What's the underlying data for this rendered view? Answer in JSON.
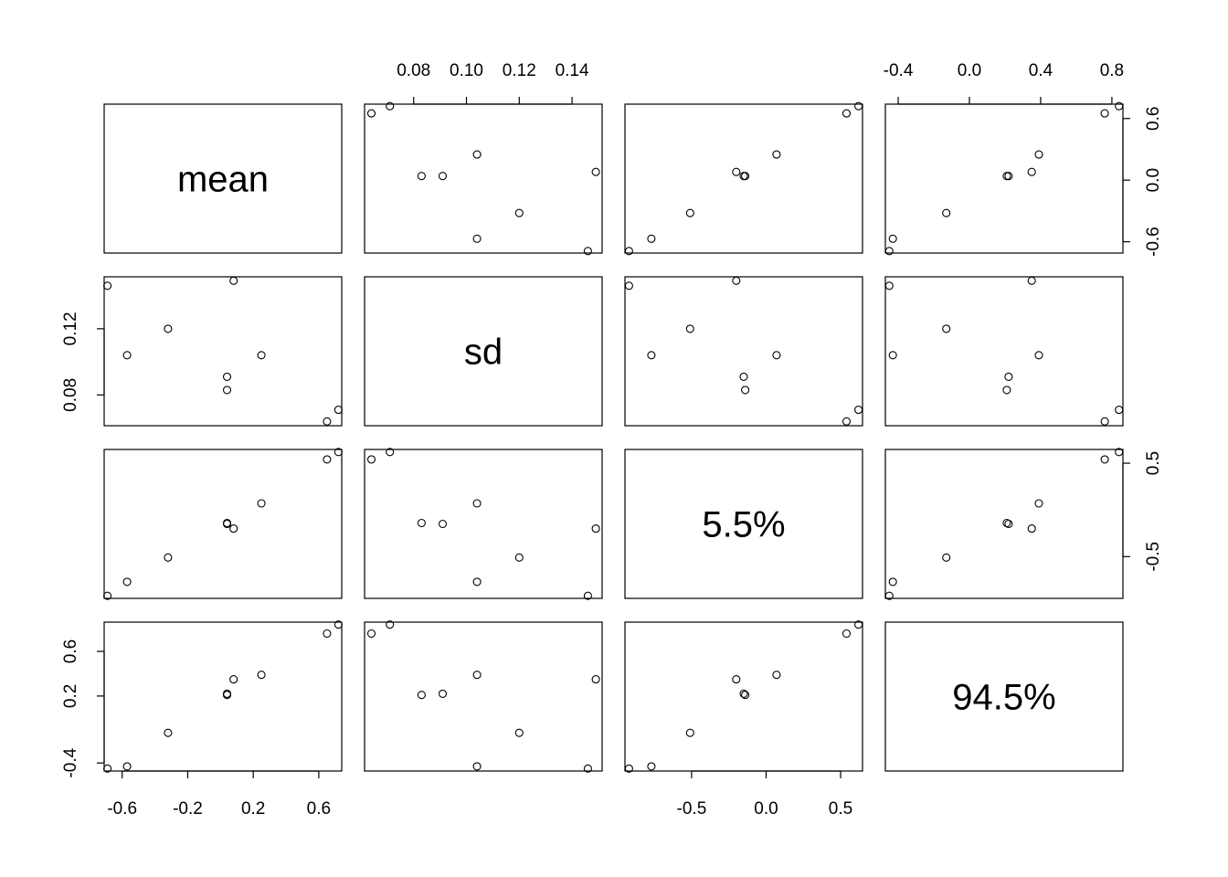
{
  "chart_data": {
    "type": "scatter",
    "subtype": "pairs-matrix",
    "variables": [
      "mean",
      "sd",
      "5.5%",
      "94.5%"
    ],
    "observations": [
      {
        "mean": 0.72,
        "sd": 0.071,
        "5.5%": 0.62,
        "94.5%": 0.84
      },
      {
        "mean": 0.65,
        "sd": 0.064,
        "5.5%": 0.54,
        "94.5%": 0.76
      },
      {
        "mean": 0.25,
        "sd": 0.104,
        "5.5%": 0.07,
        "94.5%": 0.39
      },
      {
        "mean": 0.04,
        "sd": 0.083,
        "5.5%": -0.14,
        "94.5%": 0.21
      },
      {
        "mean": 0.04,
        "sd": 0.091,
        "5.5%": -0.15,
        "94.5%": 0.22
      },
      {
        "mean": 0.08,
        "sd": 0.149,
        "5.5%": -0.2,
        "94.5%": 0.35
      },
      {
        "mean": -0.32,
        "sd": 0.12,
        "5.5%": -0.51,
        "94.5%": -0.13
      },
      {
        "mean": -0.57,
        "sd": 0.104,
        "5.5%": -0.77,
        "94.5%": -0.43
      },
      {
        "mean": -0.69,
        "sd": 0.146,
        "5.5%": -0.92,
        "94.5%": -0.45
      }
    ],
    "ranges": {
      "mean": [
        -0.71,
        0.74
      ],
      "sd": [
        0.0614,
        0.1514
      ],
      "5.5%": [
        -0.947,
        0.647
      ],
      "94.5%": [
        -0.472,
        0.862
      ]
    },
    "axes": {
      "top": [
        {
          "var": "sd",
          "ticks": [
            0.08,
            0.1,
            0.12,
            0.14
          ],
          "labels": [
            "0.08",
            "0.10",
            "0.12",
            "0.14"
          ]
        },
        {
          "var": "94.5%",
          "ticks": [
            -0.4,
            0.0,
            0.4,
            0.8
          ],
          "labels": [
            "-0.4",
            "0.0",
            "0.4",
            "0.8"
          ]
        }
      ],
      "bottom": [
        {
          "var": "mean",
          "ticks": [
            -0.6,
            -0.2,
            0.2,
            0.6
          ],
          "labels": [
            "-0.6",
            "-0.2",
            "0.2",
            "0.6"
          ]
        },
        {
          "var": "5.5%",
          "ticks": [
            -0.5,
            0.0,
            0.5
          ],
          "labels": [
            "-0.5",
            "0.0",
            "0.5"
          ]
        }
      ],
      "left": [
        {
          "var": "sd",
          "ticks": [
            0.08,
            0.12
          ],
          "labels": [
            "0.08",
            "0.12"
          ]
        },
        {
          "var": "94.5%",
          "ticks": [
            -0.4,
            0.2,
            0.6
          ],
          "labels": [
            "-0.4",
            "0.2",
            "0.6"
          ]
        }
      ],
      "right": [
        {
          "var": "mean",
          "ticks": [
            -0.6,
            0.0,
            0.6
          ],
          "labels": [
            "-0.6",
            "0.0",
            "0.6"
          ]
        },
        {
          "var": "5.5%",
          "ticks": [
            -0.5,
            0.5
          ],
          "labels": [
            "-0.5",
            "0.5"
          ]
        }
      ]
    },
    "grid": false,
    "legend": "none"
  }
}
